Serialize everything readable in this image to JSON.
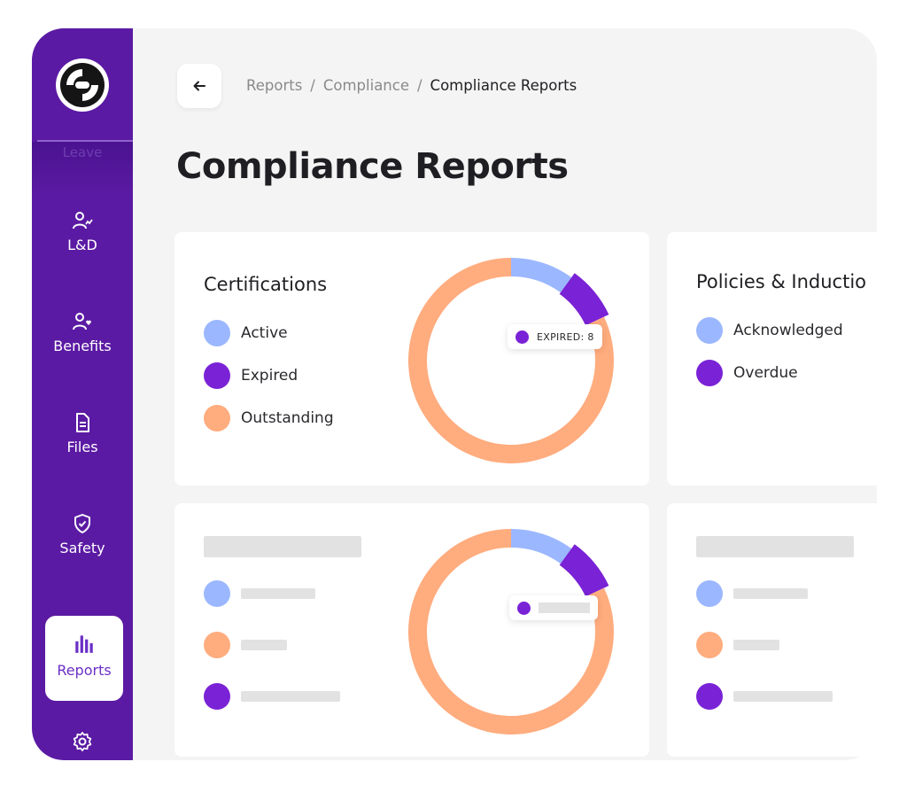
{
  "colors": {
    "sidebar": "#5b1aa3",
    "active": "#9bb7ff",
    "expired": "#7a22d6",
    "outstanding": "#ffac7e",
    "skeleton": "#e2e2e2"
  },
  "sidebar": {
    "logo_icon": "logo-icon",
    "faded_item": "Leave",
    "items": [
      {
        "label": "L&D",
        "icon": "learning-icon"
      },
      {
        "label": "Benefits",
        "icon": "user-heart-icon"
      },
      {
        "label": "Files",
        "icon": "file-icon"
      },
      {
        "label": "Safety",
        "icon": "shield-check-icon"
      },
      {
        "label": "Reports",
        "icon": "bar-chart-icon",
        "active": true
      }
    ],
    "settings_icon": "gear-icon"
  },
  "header": {
    "back_icon": "arrow-left-icon",
    "breadcrumb": [
      "Reports",
      "Compliance",
      "Compliance Reports"
    ],
    "separator": "/",
    "title": "Compliance Reports"
  },
  "cards": {
    "certifications": {
      "title": "Certifications",
      "legend": [
        {
          "label": "Active",
          "color": "#9bb7ff"
        },
        {
          "label": "Expired",
          "color": "#7a22d6"
        },
        {
          "label": "Outstanding",
          "color": "#ffac7e"
        }
      ],
      "tooltip": "EXPIRED: 8"
    },
    "policies": {
      "title": "Policies & Inductio",
      "legend": [
        {
          "label": "Acknowledged",
          "color": "#9bb7ff"
        },
        {
          "label": "Overdue",
          "color": "#7a22d6"
        }
      ]
    }
  },
  "chart_data": [
    {
      "type": "pie",
      "title": "Certifications",
      "categories": [
        "Active",
        "Expired",
        "Outstanding"
      ],
      "values": [
        10,
        8,
        82
      ],
      "annotation": "EXPIRED: 8"
    },
    {
      "type": "pie",
      "title": "",
      "categories": [
        "",
        "",
        ""
      ],
      "values": [
        10,
        8,
        82
      ]
    }
  ]
}
